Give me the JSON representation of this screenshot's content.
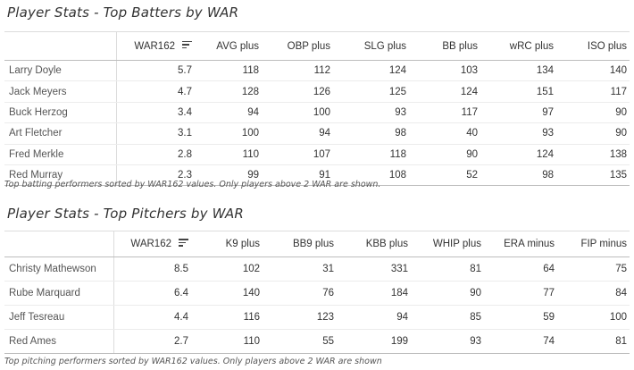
{
  "batting": {
    "title": "Player Stats - Top Batters by WAR",
    "columns": [
      "",
      "WAR162",
      "AVG plus",
      "OBP plus",
      "SLG plus",
      "BB plus",
      "wRC plus",
      "ISO plus"
    ],
    "rows": [
      [
        "Larry Doyle",
        "5.7",
        "118",
        "112",
        "124",
        "103",
        "134",
        "140"
      ],
      [
        "Jack Meyers",
        "4.7",
        "128",
        "126",
        "125",
        "124",
        "151",
        "117"
      ],
      [
        "Buck Herzog",
        "3.4",
        "94",
        "100",
        "93",
        "117",
        "97",
        "90"
      ],
      [
        "Art Fletcher",
        "3.1",
        "100",
        "94",
        "98",
        "40",
        "93",
        "90"
      ],
      [
        "Fred Merkle",
        "2.8",
        "110",
        "107",
        "118",
        "90",
        "124",
        "138"
      ],
      [
        "Red Murray",
        "2.3",
        "99",
        "91",
        "108",
        "52",
        "98",
        "135"
      ]
    ],
    "caption": "Top batting performers sorted by WAR162 values. Only players above 2 WAR are shown."
  },
  "pitching": {
    "title": "Player Stats - Top Pitchers by WAR",
    "columns": [
      "",
      "WAR162",
      "K9 plus",
      "BB9 plus",
      "KBB plus",
      "WHIP plus",
      "ERA minus",
      "FIP minus"
    ],
    "rows": [
      [
        "Christy Mathewson",
        "8.5",
        "102",
        "31",
        "331",
        "81",
        "64",
        "75"
      ],
      [
        "Rube Marquard",
        "6.4",
        "140",
        "76",
        "184",
        "90",
        "77",
        "84"
      ],
      [
        "Jeff Tesreau",
        "4.4",
        "116",
        "123",
        "94",
        "85",
        "59",
        "100"
      ],
      [
        "Red Ames",
        "2.7",
        "110",
        "55",
        "199",
        "93",
        "74",
        "81"
      ]
    ],
    "caption": "Top pitching performers sorted by WAR162 values. Only players above 2 WAR are shown"
  },
  "icons": {
    "sort": "sort-descending-icon"
  }
}
